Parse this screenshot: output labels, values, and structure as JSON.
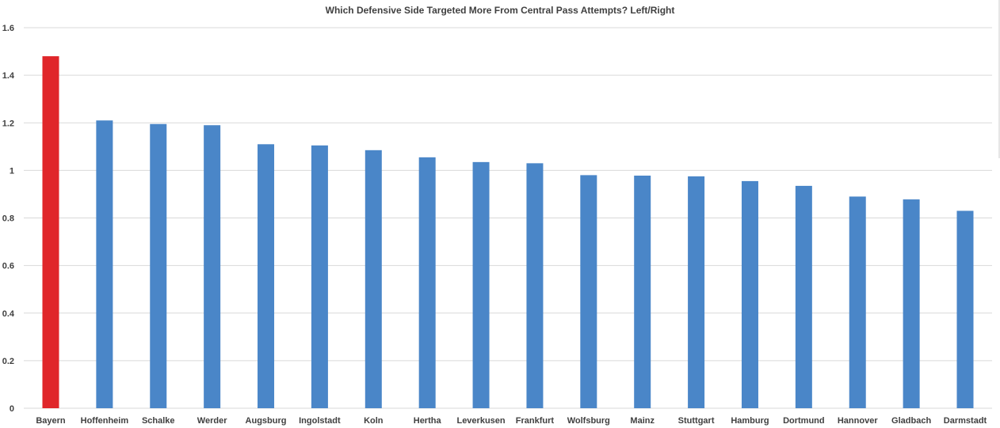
{
  "chart_data": {
    "type": "bar",
    "title": "Which Defensive Side Targeted More From Central Pass Attempts? Left/Right",
    "xlabel": "",
    "ylabel": "",
    "categories": [
      "Bayern",
      "Hoffenheim",
      "Schalke",
      "Werder",
      "Augsburg",
      "Ingolstadt",
      "Koln",
      "Hertha",
      "Leverkusen",
      "Frankfurt",
      "Wolfsburg",
      "Mainz",
      "Stuttgart",
      "Hamburg",
      "Dortmund",
      "Hannover",
      "Gladbach",
      "Darmstadt"
    ],
    "values": [
      1.48,
      1.21,
      1.195,
      1.19,
      1.11,
      1.105,
      1.085,
      1.055,
      1.035,
      1.03,
      0.98,
      0.978,
      0.975,
      0.955,
      0.935,
      0.89,
      0.878,
      0.83
    ],
    "ylim": [
      0,
      1.6
    ],
    "yticks": [
      "0",
      "0.2",
      "0.4",
      "0.6",
      "0.8",
      "1",
      "1.2",
      "1.4",
      "1.6"
    ],
    "grid": true,
    "legend": "none",
    "colors": {
      "default_bar": "#4a86c8",
      "highlight_bar": "#e0262a",
      "gridline": "#d9d9d9",
      "tick_label": "#404040"
    },
    "highlight_index": 0
  }
}
